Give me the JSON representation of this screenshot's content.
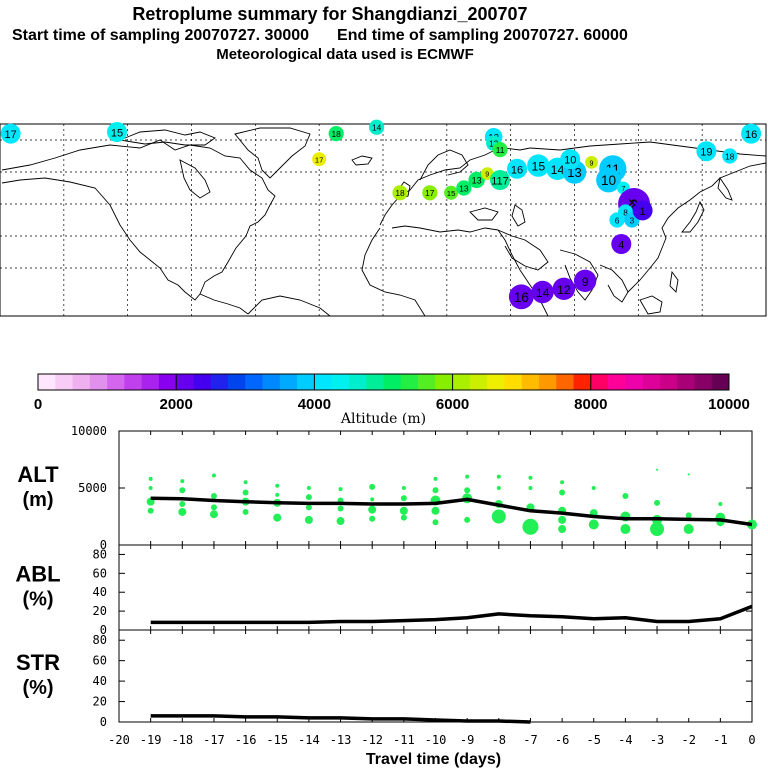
{
  "header": {
    "title": "Retroplume summary for Shangdianzi_200707",
    "start_label": "Start time of sampling 20070727. 30000",
    "end_label": "End time of sampling 20070727. 60000",
    "met_label": "Meteorological data used is ECMWF"
  },
  "colors": {
    "plume_green": "#22ee55",
    "line": "#000000"
  },
  "chart_data": [
    {
      "type": "scatter",
      "title": "Retroplume map",
      "description_labels": {
        "day_labels": [
          "17",
          "15",
          "18",
          "14",
          "13",
          "12",
          "16",
          "19",
          "18",
          "16",
          "15",
          "14",
          "13",
          "10",
          "11",
          "10",
          "9",
          "8",
          "7",
          "6",
          "5",
          "4",
          "3",
          "2",
          "1",
          "12",
          "11",
          "10",
          "9",
          "8",
          "7",
          "6",
          "5",
          "4",
          "3",
          "2",
          "16"
        ]
      },
      "points": [
        {
          "lon": -175,
          "lat": 84,
          "label": "17",
          "alt": 4100,
          "size": 1
        },
        {
          "lon": -125,
          "lat": 85,
          "label": "15",
          "alt": 4300,
          "size": 1
        },
        {
          "lon": -22,
          "lat": 84,
          "label": "18",
          "alt": 5200,
          "size": 0.6
        },
        {
          "lon": -3,
          "lat": 88,
          "label": "14",
          "alt": 4600,
          "size": 0.6
        },
        {
          "lon": 52,
          "lat": 82,
          "label": "13",
          "alt": 4200,
          "size": 0.8
        },
        {
          "lon": 52,
          "lat": 78,
          "label": "12",
          "alt": 4700,
          "size": 0.6
        },
        {
          "lon": 55,
          "lat": 74,
          "label": "11",
          "alt": 5300,
          "size": 0.6
        },
        {
          "lon": 173,
          "lat": 84,
          "label": "16",
          "alt": 4000,
          "size": 1
        },
        {
          "lon": 152,
          "lat": 73,
          "label": "19",
          "alt": 4200,
          "size": 1
        },
        {
          "lon": 163,
          "lat": 70,
          "label": "18",
          "alt": 4000,
          "size": 0.6
        },
        {
          "lon": -30,
          "lat": 68,
          "label": "17",
          "alt": 6500,
          "size": 0.5
        },
        {
          "lon": 8,
          "lat": 47,
          "label": "18",
          "alt": 6000,
          "size": 0.6
        },
        {
          "lon": 22,
          "lat": 47,
          "label": "17",
          "alt": 5800,
          "size": 0.6
        },
        {
          "lon": 32,
          "lat": 47,
          "label": "15",
          "alt": 5500,
          "size": 0.5
        },
        {
          "lon": 38,
          "lat": 50,
          "label": "13",
          "alt": 5200,
          "size": 0.6
        },
        {
          "lon": 44,
          "lat": 55,
          "label": "13",
          "alt": 5000,
          "size": 0.7
        },
        {
          "lon": 49,
          "lat": 59,
          "label": "9",
          "alt": 6300,
          "size": 0.4
        },
        {
          "lon": 55,
          "lat": 55,
          "label": "117",
          "alt": 4900,
          "size": 1
        },
        {
          "lon": 63,
          "lat": 62,
          "label": "16",
          "alt": 4200,
          "size": 1
        },
        {
          "lon": 73,
          "lat": 64,
          "label": "15",
          "alt": 4100,
          "size": 1.2
        },
        {
          "lon": 82,
          "lat": 62,
          "label": "14",
          "alt": 4000,
          "size": 1.2
        },
        {
          "lon": 90,
          "lat": 60,
          "label": "13",
          "alt": 3900,
          "size": 1.3
        },
        {
          "lon": 88,
          "lat": 68,
          "label": "10",
          "alt": 4100,
          "size": 1
        },
        {
          "lon": 98,
          "lat": 66,
          "label": "9",
          "alt": 6300,
          "size": 0.4
        },
        {
          "lon": 108,
          "lat": 62,
          "label": "11",
          "alt": 3900,
          "size": 1.6
        },
        {
          "lon": 106,
          "lat": 55,
          "label": "10",
          "alt": 3800,
          "size": 1.4
        },
        {
          "lon": 113,
          "lat": 50,
          "label": "7",
          "alt": 4300,
          "size": 0.4
        },
        {
          "lon": 118,
          "lat": 40,
          "label": "2",
          "alt": 2200,
          "size": 2
        },
        {
          "lon": 114,
          "lat": 35,
          "label": "8",
          "alt": 4200,
          "size": 0.6
        },
        {
          "lon": 110,
          "lat": 30,
          "label": "6",
          "alt": 4100,
          "size": 0.6
        },
        {
          "lon": 117,
          "lat": 30,
          "label": "3",
          "alt": 3800,
          "size": 0.6
        },
        {
          "lon": 122,
          "lat": 36,
          "label": "1",
          "alt": 2400,
          "size": 1
        },
        {
          "lon": 112,
          "lat": 15,
          "label": "4",
          "alt": 2100,
          "size": 1
        },
        {
          "lon": 95,
          "lat": -8,
          "label": "9",
          "alt": 2100,
          "size": 1.2
        },
        {
          "lon": 85,
          "lat": -13,
          "label": "12",
          "alt": 2000,
          "size": 1.2
        },
        {
          "lon": 75,
          "lat": -15,
          "label": "14",
          "alt": 2000,
          "size": 1.2
        },
        {
          "lon": 65,
          "lat": -18,
          "label": "16",
          "alt": 2050,
          "size": 1.4
        }
      ],
      "xlim": [
        -180,
        180
      ],
      "ylim": [
        -30,
        90
      ]
    },
    {
      "type": "colorbar",
      "xlabel": "Altitude (m)",
      "tick_labels": [
        "0",
        "2000",
        "4000",
        "6000",
        "8000",
        "10000"
      ],
      "ticks": [
        0,
        2000,
        4000,
        6000,
        8000,
        10000
      ],
      "range": [
        0,
        10000
      ],
      "colors": [
        "#ffe6ff",
        "#f7ccf7",
        "#eeb0ee",
        "#e290ee",
        "#d466ee",
        "#c040ee",
        "#aa22ee",
        "#8800ee",
        "#6600ee",
        "#4400ee",
        "#2222ee",
        "#0044ee",
        "#0066ff",
        "#0088ff",
        "#00aaff",
        "#00ccff",
        "#00e6ff",
        "#00f0f0",
        "#00eecc",
        "#00ee99",
        "#00ee66",
        "#22ee44",
        "#55ee22",
        "#88ee00",
        "#aaee00",
        "#ccee00",
        "#eeee00",
        "#ffdd00",
        "#ffbb00",
        "#ff9900",
        "#ff6600",
        "#ff2200",
        "#ff0066",
        "#ff0099",
        "#ee00aa",
        "#dd0099",
        "#cc0088",
        "#aa0077",
        "#880066",
        "#660055"
      ]
    },
    {
      "type": "line",
      "ylabel": "ALT",
      "yunit": "(m)",
      "ylim": [
        0,
        10000
      ],
      "ytick_labels": [
        "0",
        "5000",
        "10000"
      ],
      "yticks": [
        0,
        5000,
        10000
      ],
      "x": [
        -19,
        -18,
        -17,
        -16,
        -15,
        -14,
        -13,
        -12,
        -11,
        -10,
        -9,
        -8,
        -7,
        -6,
        -5,
        -4,
        -3,
        -2,
        -1,
        0
      ],
      "values": [
        4100,
        4050,
        3900,
        3800,
        3700,
        3650,
        3650,
        3600,
        3600,
        3650,
        4000,
        3500,
        3000,
        2800,
        2500,
        2300,
        2300,
        2250,
        2200,
        1800
      ],
      "scatter": [
        {
          "x": -19,
          "y": 5800,
          "r": 2
        },
        {
          "x": -19,
          "y": 5000,
          "r": 2
        },
        {
          "x": -19,
          "y": 3800,
          "r": 4
        },
        {
          "x": -19,
          "y": 3000,
          "r": 3
        },
        {
          "x": -18,
          "y": 5600,
          "r": 2
        },
        {
          "x": -18,
          "y": 4800,
          "r": 3
        },
        {
          "x": -18,
          "y": 3600,
          "r": 3
        },
        {
          "x": -18,
          "y": 2900,
          "r": 4
        },
        {
          "x": -17,
          "y": 6100,
          "r": 2
        },
        {
          "x": -17,
          "y": 4300,
          "r": 3
        },
        {
          "x": -17,
          "y": 3300,
          "r": 3
        },
        {
          "x": -17,
          "y": 2700,
          "r": 4
        },
        {
          "x": -16,
          "y": 5500,
          "r": 2
        },
        {
          "x": -16,
          "y": 4600,
          "r": 3
        },
        {
          "x": -16,
          "y": 3800,
          "r": 4
        },
        {
          "x": -16,
          "y": 2900,
          "r": 3
        },
        {
          "x": -15,
          "y": 5200,
          "r": 2
        },
        {
          "x": -15,
          "y": 4400,
          "r": 2
        },
        {
          "x": -15,
          "y": 3700,
          "r": 4
        },
        {
          "x": -15,
          "y": 2400,
          "r": 4
        },
        {
          "x": -14,
          "y": 5000,
          "r": 2
        },
        {
          "x": -14,
          "y": 4200,
          "r": 3
        },
        {
          "x": -14,
          "y": 3300,
          "r": 3
        },
        {
          "x": -14,
          "y": 2200,
          "r": 4
        },
        {
          "x": -13,
          "y": 4900,
          "r": 2
        },
        {
          "x": -13,
          "y": 3900,
          "r": 3
        },
        {
          "x": -13,
          "y": 3200,
          "r": 3
        },
        {
          "x": -13,
          "y": 2100,
          "r": 4
        },
        {
          "x": -12,
          "y": 5100,
          "r": 3
        },
        {
          "x": -12,
          "y": 4000,
          "r": 2
        },
        {
          "x": -12,
          "y": 3100,
          "r": 4
        },
        {
          "x": -12,
          "y": 2300,
          "r": 3
        },
        {
          "x": -11,
          "y": 5000,
          "r": 2
        },
        {
          "x": -11,
          "y": 4100,
          "r": 3
        },
        {
          "x": -11,
          "y": 3000,
          "r": 4
        },
        {
          "x": -11,
          "y": 2400,
          "r": 3
        },
        {
          "x": -10,
          "y": 5800,
          "r": 2
        },
        {
          "x": -10,
          "y": 4800,
          "r": 3
        },
        {
          "x": -10,
          "y": 3900,
          "r": 5
        },
        {
          "x": -10,
          "y": 3000,
          "r": 4
        },
        {
          "x": -10,
          "y": 2000,
          "r": 3
        },
        {
          "x": -9,
          "y": 6000,
          "r": 2
        },
        {
          "x": -9,
          "y": 4800,
          "r": 3
        },
        {
          "x": -9,
          "y": 4100,
          "r": 5
        },
        {
          "x": -9,
          "y": 2200,
          "r": 3
        },
        {
          "x": -8,
          "y": 6000,
          "r": 2
        },
        {
          "x": -8,
          "y": 5000,
          "r": 2
        },
        {
          "x": -8,
          "y": 3600,
          "r": 4
        },
        {
          "x": -8,
          "y": 2500,
          "r": 7
        },
        {
          "x": -7,
          "y": 5900,
          "r": 2
        },
        {
          "x": -7,
          "y": 5000,
          "r": 2
        },
        {
          "x": -7,
          "y": 3300,
          "r": 4
        },
        {
          "x": -7,
          "y": 1600,
          "r": 8
        },
        {
          "x": -6,
          "y": 5500,
          "r": 2
        },
        {
          "x": -6,
          "y": 4600,
          "r": 3
        },
        {
          "x": -6,
          "y": 3000,
          "r": 4
        },
        {
          "x": -6,
          "y": 2200,
          "r": 4
        },
        {
          "x": -6,
          "y": 1400,
          "r": 4
        },
        {
          "x": -5,
          "y": 5000,
          "r": 2
        },
        {
          "x": -5,
          "y": 2800,
          "r": 4
        },
        {
          "x": -5,
          "y": 1800,
          "r": 5
        },
        {
          "x": -4,
          "y": 4300,
          "r": 3
        },
        {
          "x": -4,
          "y": 2500,
          "r": 5
        },
        {
          "x": -4,
          "y": 1400,
          "r": 5
        },
        {
          "x": -3,
          "y": 6600,
          "r": 1
        },
        {
          "x": -3,
          "y": 3700,
          "r": 3
        },
        {
          "x": -3,
          "y": 2200,
          "r": 5
        },
        {
          "x": -3,
          "y": 1400,
          "r": 7
        },
        {
          "x": -2,
          "y": 6200,
          "r": 1
        },
        {
          "x": -2,
          "y": 2600,
          "r": 3
        },
        {
          "x": -2,
          "y": 1400,
          "r": 5
        },
        {
          "x": -1,
          "y": 3600,
          "r": 2
        },
        {
          "x": -1,
          "y": 2400,
          "r": 5
        },
        {
          "x": -1,
          "y": 2000,
          "r": 4
        },
        {
          "x": 0,
          "y": 1800,
          "r": 5
        }
      ]
    },
    {
      "type": "line",
      "ylabel": "ABL",
      "yunit": "(%)",
      "ylim": [
        0,
        90
      ],
      "ytick_labels": [
        "0",
        "20",
        "40",
        "60",
        "80"
      ],
      "yticks": [
        0,
        20,
        40,
        60,
        80
      ],
      "x": [
        -19,
        -18,
        -17,
        -16,
        -15,
        -14,
        -13,
        -12,
        -11,
        -10,
        -9,
        -8,
        -7,
        -6,
        -5,
        -4,
        -3,
        -2,
        -1,
        0
      ],
      "values": [
        8,
        8,
        8,
        8,
        8,
        8,
        9,
        9,
        10,
        11,
        13,
        17,
        15,
        14,
        12,
        13,
        9,
        9,
        12,
        25
      ]
    },
    {
      "type": "line",
      "ylabel": "STR",
      "yunit": "(%)",
      "ylim": [
        0,
        90
      ],
      "ytick_labels": [
        "0",
        "20",
        "40",
        "60",
        "80"
      ],
      "yticks": [
        0,
        20,
        40,
        60,
        80
      ],
      "x": [
        -19,
        -18,
        -17,
        -16,
        -15,
        -14,
        -13,
        -12,
        -11,
        -10,
        -9,
        -8,
        -7
      ],
      "values": [
        6,
        6,
        6,
        5,
        5,
        4,
        4,
        3,
        3,
        2,
        1,
        1,
        0
      ],
      "xlabel": "Travel time (days)",
      "xtick_labels": [
        "-20",
        "-19",
        "-18",
        "-17",
        "-16",
        "-15",
        "-14",
        "-13",
        "-12",
        "-11",
        "-10",
        "-9",
        "-8",
        "-7",
        "-6",
        "-5",
        "-4",
        "-3",
        "-2",
        "-1",
        "0"
      ],
      "xticks": [
        -20,
        -19,
        -18,
        -17,
        -16,
        -15,
        -14,
        -13,
        -12,
        -11,
        -10,
        -9,
        -8,
        -7,
        -6,
        -5,
        -4,
        -3,
        -2,
        -1,
        0
      ],
      "xlim": [
        -20,
        0
      ]
    }
  ]
}
